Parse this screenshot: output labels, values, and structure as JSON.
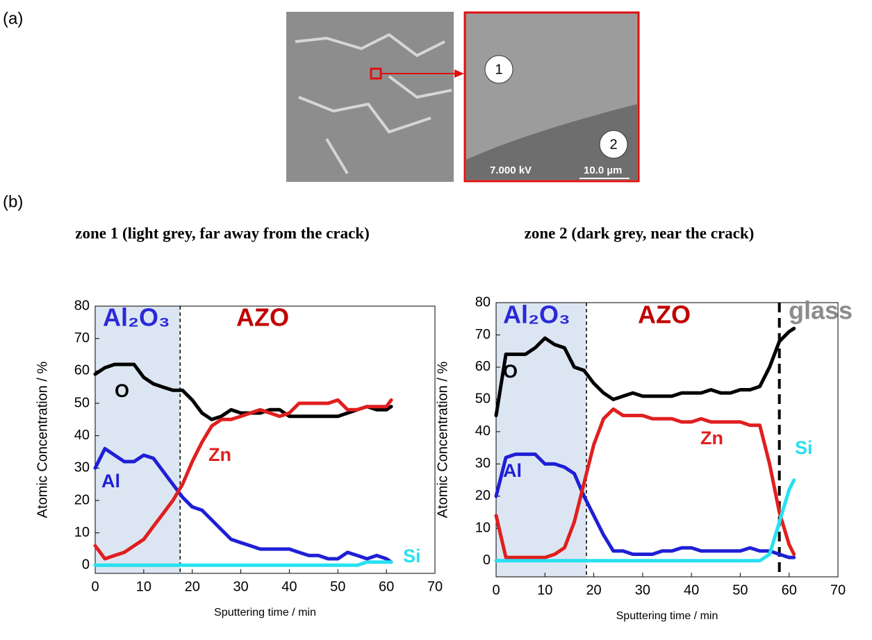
{
  "panel_labels": [
    "(a)",
    "(b)"
  ],
  "sem_image": {
    "point_labels": [
      "1",
      "2"
    ],
    "voltage": "7.000 kV",
    "scale_bar": "10.0 µm"
  },
  "chart_data": [
    {
      "type": "line",
      "title": "zone 1 (light grey, far away from the crack)",
      "x_label": "Sputtering time / min",
      "y_label": "Atomic Concentration / %",
      "xlim": [
        0,
        70
      ],
      "xticks": [
        0,
        10,
        20,
        30,
        40,
        50,
        60,
        70
      ],
      "ylim": [
        -2.5,
        80
      ],
      "yticks": [
        0,
        10,
        20,
        30,
        40,
        50,
        60,
        70,
        80
      ],
      "shaded_region": [
        0,
        17.5
      ],
      "dividers": [
        17.5
      ],
      "thick_dividers": [],
      "annotations": [
        {
          "text": "Al₂O₃",
          "color": "#2a2ad8"
        },
        {
          "text": "AZO",
          "color": "#c00000"
        }
      ],
      "x": [
        0,
        2,
        4,
        6,
        8,
        10,
        12,
        14,
        16,
        18,
        20,
        22,
        24,
        26,
        28,
        30,
        32,
        34,
        36,
        38,
        40,
        42,
        44,
        46,
        48,
        50,
        52,
        54,
        56,
        58,
        60,
        61
      ],
      "series": [
        {
          "name": "O",
          "color": "#000000",
          "values": [
            59,
            61,
            62,
            62,
            62,
            58,
            56,
            55,
            54,
            54,
            51,
            47,
            45,
            46,
            48,
            47,
            47,
            47,
            48,
            48,
            46,
            46,
            46,
            46,
            46,
            46,
            47,
            48,
            49,
            48,
            48,
            49
          ]
        },
        {
          "name": "Al",
          "color": "#1f1fd6",
          "values": [
            30,
            36,
            34,
            32,
            32,
            34,
            33,
            29,
            25,
            21,
            18,
            17,
            14,
            11,
            8,
            7,
            6,
            5,
            5,
            5,
            5,
            4,
            3,
            3,
            2,
            2,
            4,
            3,
            2,
            3,
            2,
            1
          ]
        },
        {
          "name": "Zn",
          "color": "#e01f1f",
          "values": [
            6,
            2,
            3,
            4,
            6,
            8,
            12,
            16,
            20,
            25,
            32,
            38,
            43,
            45,
            45,
            46,
            47,
            48,
            47,
            46,
            47,
            50,
            50,
            50,
            50,
            51,
            48,
            48,
            49,
            49,
            49,
            51
          ]
        },
        {
          "name": "Si",
          "color": "#28e0f0",
          "values": [
            0,
            0,
            0,
            0,
            0,
            0,
            0,
            0,
            0,
            0,
            0,
            0,
            0,
            0,
            0,
            0,
            0,
            0,
            0,
            0,
            0,
            0,
            0,
            0,
            0,
            0,
            0,
            0,
            1,
            1,
            1,
            1
          ]
        }
      ]
    },
    {
      "type": "line",
      "title": "zone 2 (dark grey, near the crack)",
      "x_label": "Sputtering time / min",
      "y_label": "Atomic Concentration / %",
      "xlim": [
        0,
        70
      ],
      "xticks": [
        0,
        10,
        20,
        30,
        40,
        50,
        60,
        70
      ],
      "ylim": [
        -5,
        80
      ],
      "yticks": [
        0,
        10,
        20,
        30,
        40,
        50,
        60,
        70,
        80
      ],
      "shaded_region": [
        0,
        18.5
      ],
      "dividers": [
        18.5
      ],
      "thick_dividers": [
        58
      ],
      "annotations": [
        {
          "text": "Al₂O₃",
          "color": "#2a2ad8"
        },
        {
          "text": "AZO",
          "color": "#c00000"
        },
        {
          "text": "glass",
          "color": "#8c8c8c"
        }
      ],
      "x": [
        0,
        2,
        4,
        6,
        8,
        10,
        12,
        14,
        16,
        18,
        20,
        22,
        24,
        26,
        28,
        30,
        32,
        34,
        36,
        38,
        40,
        42,
        44,
        46,
        48,
        50,
        52,
        54,
        56,
        58,
        60,
        61
      ],
      "series": [
        {
          "name": "O",
          "color": "#000000",
          "values": [
            45,
            64,
            64,
            64,
            66,
            69,
            67,
            66,
            60,
            59,
            55,
            52,
            50,
            51,
            52,
            51,
            51,
            51,
            51,
            52,
            52,
            52,
            53,
            52,
            52,
            53,
            53,
            54,
            60,
            68,
            71,
            72
          ]
        },
        {
          "name": "Al",
          "color": "#1f1fd6",
          "values": [
            20,
            32,
            33,
            33,
            33,
            30,
            30,
            29,
            27,
            20,
            14,
            8,
            3,
            3,
            2,
            2,
            2,
            3,
            3,
            4,
            4,
            3,
            3,
            3,
            3,
            3,
            4,
            3,
            3,
            2,
            1,
            1
          ]
        },
        {
          "name": "Zn",
          "color": "#e01f1f",
          "values": [
            14,
            1,
            1,
            1,
            1,
            1,
            2,
            4,
            12,
            24,
            36,
            44,
            47,
            45,
            45,
            45,
            44,
            44,
            44,
            43,
            43,
            44,
            43,
            43,
            43,
            43,
            42,
            42,
            30,
            15,
            5,
            2
          ]
        },
        {
          "name": "Si",
          "color": "#28e0f0",
          "values": [
            0,
            0,
            0,
            0,
            0,
            0,
            0,
            0,
            0,
            0,
            0,
            0,
            0,
            0,
            0,
            0,
            0,
            0,
            0,
            0,
            0,
            0,
            0,
            0,
            0,
            0,
            0,
            0,
            2,
            12,
            22,
            25
          ]
        }
      ]
    }
  ]
}
